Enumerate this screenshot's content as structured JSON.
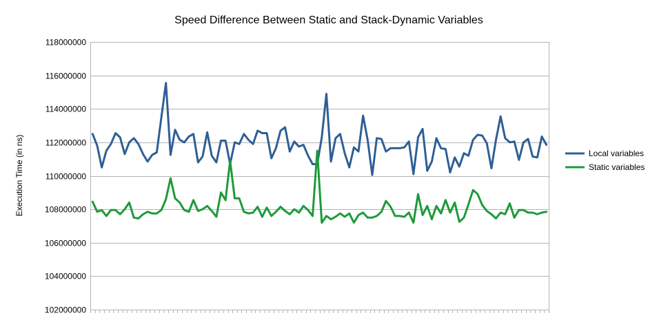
{
  "chart_data": {
    "type": "line",
    "title": "Speed Difference Between Static and Stack-Dynamic Variables",
    "xlabel": "",
    "ylabel": "Execution Time (in ns)",
    "ylim": [
      102000000,
      118000000
    ],
    "yticks": [
      "118000000",
      "116000000",
      "114000000",
      "112000000",
      "110000000",
      "108000000",
      "106000000",
      "104000000",
      "102000000"
    ],
    "grid": true,
    "legend_position": "right",
    "series": [
      {
        "name": "Local variables",
        "color": "#2e5f94",
        "values": [
          112500000,
          111800000,
          110500000,
          111500000,
          111900000,
          112550000,
          112300000,
          111300000,
          112000000,
          112250000,
          111900000,
          111300000,
          110850000,
          111250000,
          111400000,
          113500000,
          115550000,
          111250000,
          112750000,
          112150000,
          112000000,
          112350000,
          112500000,
          110800000,
          111150000,
          112600000,
          111200000,
          110800000,
          112100000,
          112100000,
          110700000,
          112000000,
          111900000,
          112500000,
          112150000,
          111900000,
          112700000,
          112550000,
          112550000,
          111050000,
          111650000,
          112700000,
          112900000,
          111450000,
          112050000,
          111750000,
          111850000,
          111200000,
          110700000,
          110700000,
          112300000,
          114900000,
          110850000,
          112250000,
          112500000,
          111350000,
          110500000,
          111700000,
          111450000,
          113600000,
          112150000,
          110050000,
          112250000,
          112200000,
          111450000,
          111650000,
          111650000,
          111650000,
          111700000,
          112050000,
          110100000,
          112300000,
          112800000,
          110300000,
          110850000,
          112250000,
          111650000,
          111600000,
          110200000,
          111100000,
          110550000,
          111350000,
          111200000,
          112150000,
          112450000,
          112400000,
          111950000,
          110450000,
          112150000,
          113550000,
          112250000,
          112000000,
          112050000,
          110950000,
          112000000,
          112200000,
          111150000,
          111100000,
          112350000,
          111850000
        ],
        "stroke": 3
      },
      {
        "name": "Static variables",
        "color": "#1d9a3a",
        "values": [
          108450000,
          107850000,
          107950000,
          107600000,
          107950000,
          107950000,
          107700000,
          108000000,
          108400000,
          107500000,
          107450000,
          107700000,
          107850000,
          107750000,
          107750000,
          107950000,
          108600000,
          109850000,
          108650000,
          108400000,
          107950000,
          107850000,
          108550000,
          107900000,
          108000000,
          108200000,
          107900000,
          107550000,
          109000000,
          108550000,
          110900000,
          108650000,
          108650000,
          107850000,
          107750000,
          107800000,
          108150000,
          107550000,
          108100000,
          107600000,
          107850000,
          108150000,
          107900000,
          107700000,
          108000000,
          107800000,
          108200000,
          107950000,
          107600000,
          111500000,
          107200000,
          107600000,
          107400000,
          107550000,
          107750000,
          107550000,
          107750000,
          107200000,
          107650000,
          107800000,
          107500000,
          107500000,
          107600000,
          107850000,
          108500000,
          108150000,
          107600000,
          107600000,
          107550000,
          107800000,
          107200000,
          108900000,
          107650000,
          108200000,
          107400000,
          108200000,
          107750000,
          108550000,
          107800000,
          108400000,
          107250000,
          107500000,
          108300000,
          109150000,
          108900000,
          108250000,
          107900000,
          107700000,
          107450000,
          107800000,
          107700000,
          108350000,
          107500000,
          107950000,
          107950000,
          107800000,
          107800000,
          107700000,
          107800000,
          107850000
        ],
        "stroke": 3
      }
    ]
  }
}
